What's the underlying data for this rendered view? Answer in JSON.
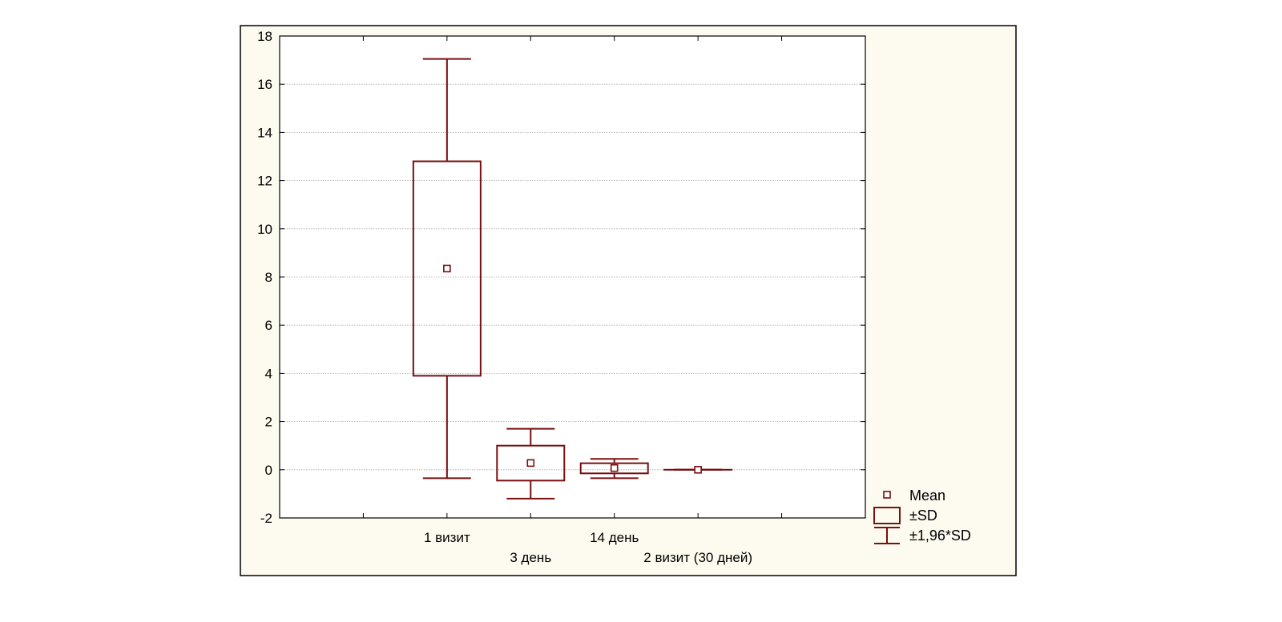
{
  "chart_data": {
    "type": "box",
    "categories": [
      "1 визит",
      "3 день",
      "14 день",
      "2 визит (30 дней)"
    ],
    "series": [
      {
        "stats": [
          {
            "category": "1 визит",
            "mean": 8.35,
            "sd_low": 3.9,
            "sd_high": 12.8,
            "ci_low": -0.35,
            "ci_high": 17.05
          },
          {
            "category": "3 день",
            "mean": 0.28,
            "sd_low": -0.45,
            "sd_high": 1.0,
            "ci_low": -1.2,
            "ci_high": 1.7
          },
          {
            "category": "14 день",
            "mean": 0.07,
            "sd_low": -0.15,
            "sd_high": 0.27,
            "ci_low": -0.35,
            "ci_high": 0.45
          },
          {
            "category": "2 визит (30 дней)",
            "mean": 0.0,
            "sd_low": 0.0,
            "sd_high": 0.0,
            "ci_low": 0.0,
            "ci_high": 0.0
          }
        ]
      }
    ],
    "ylim": [
      -2,
      18
    ],
    "yticks": [
      -2,
      0,
      2,
      4,
      6,
      8,
      10,
      12,
      14,
      16,
      18
    ],
    "grid": true,
    "legend_position": "bottom-right",
    "legend": [
      {
        "symbol": "mean-marker",
        "label": "Mean"
      },
      {
        "symbol": "sd-box",
        "label": "±SD"
      },
      {
        "symbol": "ci-whisker",
        "label": "±1,96*SD"
      }
    ],
    "colors": {
      "series": "#7a0f0f",
      "frame_background": "#fdfbef",
      "plot_background": "#ffffff",
      "grid": "#aaaaaa",
      "axis": "#000000"
    }
  }
}
